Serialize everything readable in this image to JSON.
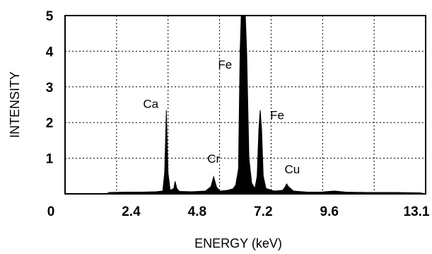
{
  "chart_data": {
    "type": "area",
    "title": "",
    "xlabel": "ENERGY (keV)",
    "ylabel": "INTENSITY",
    "xlim": [
      0,
      13.1
    ],
    "ylim": [
      0,
      5
    ],
    "x_tick_labels": [
      "0",
      "2.4",
      "4.8",
      "7.2",
      "9.6",
      "13.1"
    ],
    "x_tick_values": [
      0,
      2.4,
      4.8,
      7.2,
      9.6,
      13.1
    ],
    "y_tick_labels": [
      "1",
      "2",
      "3",
      "4",
      "5"
    ],
    "y_tick_values": [
      1,
      2,
      3,
      4,
      5
    ],
    "grid": true,
    "color": "#000000",
    "series": [
      {
        "values": [
          [
            0,
            0
          ],
          [
            1.5,
            0
          ],
          [
            1.6,
            0.04
          ],
          [
            2.2,
            0.05
          ],
          [
            2.8,
            0.05
          ],
          [
            3.3,
            0.06
          ],
          [
            3.55,
            0.08
          ],
          [
            3.62,
            0.6
          ],
          [
            3.68,
            2.35
          ],
          [
            3.74,
            0.6
          ],
          [
            3.82,
            0.1
          ],
          [
            3.95,
            0.15
          ],
          [
            4.0,
            0.35
          ],
          [
            4.06,
            0.15
          ],
          [
            4.15,
            0.07
          ],
          [
            4.6,
            0.06
          ],
          [
            5.1,
            0.08
          ],
          [
            5.3,
            0.2
          ],
          [
            5.4,
            0.48
          ],
          [
            5.5,
            0.2
          ],
          [
            5.62,
            0.08
          ],
          [
            5.9,
            0.1
          ],
          [
            6.1,
            0.14
          ],
          [
            6.2,
            0.25
          ],
          [
            6.3,
            0.7
          ],
          [
            6.36,
            4.0
          ],
          [
            6.4,
            5.1
          ],
          [
            6.55,
            5.1
          ],
          [
            6.6,
            4.0
          ],
          [
            6.68,
            1.0
          ],
          [
            6.78,
            0.3
          ],
          [
            6.9,
            0.15
          ],
          [
            6.98,
            0.5
          ],
          [
            7.04,
            1.8
          ],
          [
            7.09,
            2.35
          ],
          [
            7.14,
            1.8
          ],
          [
            7.2,
            0.5
          ],
          [
            7.3,
            0.15
          ],
          [
            7.6,
            0.08
          ],
          [
            7.9,
            0.1
          ],
          [
            8.0,
            0.2
          ],
          [
            8.05,
            0.28
          ],
          [
            8.12,
            0.2
          ],
          [
            8.3,
            0.08
          ],
          [
            8.8,
            0.05
          ],
          [
            9.3,
            0.05
          ],
          [
            9.6,
            0.07
          ],
          [
            9.8,
            0.08
          ],
          [
            10.2,
            0.05
          ],
          [
            11,
            0.04
          ],
          [
            12,
            0.04
          ],
          [
            12.9,
            0.03
          ],
          [
            13.1,
            0
          ]
        ]
      }
    ],
    "annotations": [
      {
        "text": "Ca",
        "x": 3.68,
        "y": 2.35
      },
      {
        "text": "Fe",
        "x": 6.48,
        "y": 5
      },
      {
        "text": "Fe",
        "x": 7.09,
        "y": 2.35
      },
      {
        "text": "Cr",
        "x": 5.4,
        "y": 0.48
      },
      {
        "text": "Cu",
        "x": 8.05,
        "y": 0.28
      }
    ]
  }
}
